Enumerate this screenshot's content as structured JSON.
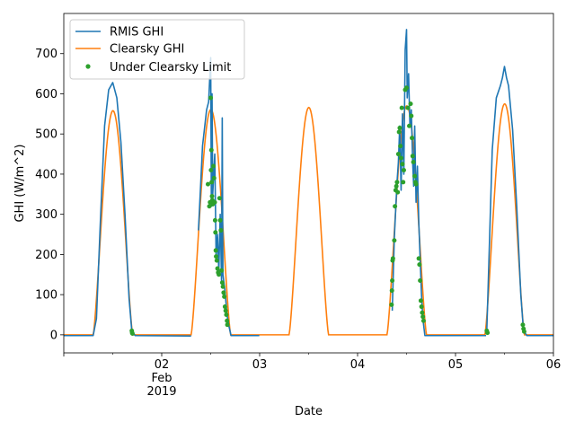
{
  "chart_data": {
    "type": "line",
    "xlabel": "Date",
    "ylabel": "GHI (W/m^2)",
    "xlim": [
      "2019-02-01",
      "2019-02-06"
    ],
    "ylim": [
      -45,
      800
    ],
    "x_ticks": [
      {
        "x": "2019-02-01",
        "label": ""
      },
      {
        "x": "2019-02-02",
        "label": "02",
        "sublabels": [
          "Feb",
          "2019"
        ]
      },
      {
        "x": "2019-02-03",
        "label": "03"
      },
      {
        "x": "2019-02-04",
        "label": "04"
      },
      {
        "x": "2019-02-05",
        "label": "05"
      },
      {
        "x": "2019-02-06",
        "label": "06"
      }
    ],
    "y_ticks": [
      0,
      100,
      200,
      300,
      400,
      500,
      600,
      700
    ],
    "legend": {
      "placement": "upper-left"
    },
    "series": [
      {
        "name": "RMIS GHI",
        "color": "#1f77b4",
        "kind": "line",
        "points": [
          [
            "2019-02-01 00:00",
            -2
          ],
          [
            "2019-02-01 07:12",
            -2
          ],
          [
            "2019-02-01 08:00",
            40
          ],
          [
            "2019-02-01 09:00",
            290
          ],
          [
            "2019-02-01 10:00",
            520
          ],
          [
            "2019-02-01 11:00",
            610
          ],
          [
            "2019-02-01 12:00",
            628
          ],
          [
            "2019-02-01 13:00",
            590
          ],
          [
            "2019-02-01 14:00",
            480
          ],
          [
            "2019-02-01 15:00",
            300
          ],
          [
            "2019-02-01 16:00",
            90
          ],
          [
            "2019-02-01 16:40",
            10
          ],
          [
            "2019-02-01 17:30",
            -2
          ],
          [
            "2019-02-02 07:12",
            -3
          ],
          null,
          [
            "2019-02-02 09:00",
            260
          ],
          [
            "2019-02-02 10:00",
            470
          ],
          [
            "2019-02-02 11:00",
            560
          ],
          [
            "2019-02-02 11:30",
            580
          ],
          [
            "2019-02-02 12:00",
            690
          ],
          [
            "2019-02-02 12:10",
            320
          ],
          [
            "2019-02-02 12:20",
            600
          ],
          [
            "2019-02-02 12:30",
            350
          ],
          [
            "2019-02-02 13:00",
            450
          ],
          [
            "2019-02-02 13:20",
            190
          ],
          [
            "2019-02-02 13:40",
            250
          ],
          [
            "2019-02-02 14:00",
            160
          ],
          [
            "2019-02-02 14:20",
            300
          ],
          [
            "2019-02-02 14:40",
            130
          ],
          [
            "2019-02-02 14:50",
            540
          ],
          [
            "2019-02-02 15:00",
            150
          ],
          [
            "2019-02-02 15:30",
            110
          ],
          [
            "2019-02-02 16:00",
            50
          ],
          [
            "2019-02-02 16:30",
            20
          ],
          [
            "2019-02-02 17:00",
            -2
          ],
          [
            "2019-02-02 23:55",
            -2
          ],
          null,
          [
            "2019-02-04 08:30",
            60
          ],
          [
            "2019-02-04 09:00",
            240
          ],
          [
            "2019-02-04 09:40",
            380
          ],
          [
            "2019-02-04 10:00",
            430
          ],
          [
            "2019-02-04 10:20",
            520
          ],
          [
            "2019-02-04 10:40",
            360
          ],
          [
            "2019-02-04 11:00",
            550
          ],
          [
            "2019-02-04 11:20",
            400
          ],
          [
            "2019-02-04 11:40",
            710
          ],
          [
            "2019-02-04 12:00",
            760
          ],
          [
            "2019-02-04 12:10",
            590
          ],
          [
            "2019-02-04 12:30",
            650
          ],
          [
            "2019-02-04 12:50",
            520
          ],
          [
            "2019-02-04 13:10",
            560
          ],
          [
            "2019-02-04 13:30",
            430
          ],
          [
            "2019-02-04 13:45",
            370
          ],
          [
            "2019-02-04 14:00",
            520
          ],
          [
            "2019-02-04 14:20",
            330
          ],
          [
            "2019-02-04 14:40",
            420
          ],
          [
            "2019-02-04 15:00",
            280
          ],
          [
            "2019-02-04 15:20",
            190
          ],
          [
            "2019-02-04 15:40",
            100
          ],
          [
            "2019-02-04 16:00",
            40
          ],
          [
            "2019-02-04 16:30",
            -2
          ],
          [
            "2019-02-05 07:30",
            -2
          ],
          null,
          [
            "2019-02-05 07:40",
            10
          ],
          [
            "2019-02-05 08:00",
            120
          ],
          [
            "2019-02-05 09:00",
            460
          ],
          [
            "2019-02-05 10:00",
            590
          ],
          [
            "2019-02-05 11:00",
            620
          ],
          [
            "2019-02-05 11:30",
            640
          ],
          [
            "2019-02-05 12:00",
            668
          ],
          [
            "2019-02-05 12:30",
            640
          ],
          [
            "2019-02-05 13:00",
            620
          ],
          [
            "2019-02-05 14:00",
            510
          ],
          [
            "2019-02-05 15:00",
            320
          ],
          [
            "2019-02-05 16:00",
            100
          ],
          [
            "2019-02-05 16:40",
            10
          ],
          [
            "2019-02-05 17:30",
            -2
          ],
          [
            "2019-02-06 00:00",
            -2
          ]
        ]
      },
      {
        "name": "Clearsky GHI",
        "color": "#ff7f0e",
        "kind": "daily-bell",
        "days": [
          {
            "day": "2019-02-01",
            "peak": 558
          },
          {
            "day": "2019-02-02",
            "peak": 561
          },
          {
            "day": "2019-02-03",
            "peak": 566
          },
          {
            "day": "2019-02-04",
            "peak": 570
          },
          {
            "day": "2019-02-05",
            "peak": 575
          }
        ],
        "sunrise_hour": 7.2,
        "sunset_hour": 16.9
      },
      {
        "name": "Under Clearsky Limit",
        "color": "#2ca02c",
        "kind": "scatter",
        "points": [
          [
            "2019-02-01 16:40",
            10
          ],
          [
            "2019-02-01 16:45",
            5
          ],
          [
            "2019-02-01 16:50",
            3
          ],
          [
            "2019-02-02 11:20",
            375
          ],
          [
            "2019-02-02 11:40",
            320
          ],
          [
            "2019-02-02 11:50",
            330
          ],
          [
            "2019-02-02 12:00",
            590
          ],
          [
            "2019-02-02 12:05",
            410
          ],
          [
            "2019-02-02 12:10",
            460
          ],
          [
            "2019-02-02 12:15",
            380
          ],
          [
            "2019-02-02 12:20",
            345
          ],
          [
            "2019-02-02 12:25",
            335
          ],
          [
            "2019-02-02 12:30",
            325
          ],
          [
            "2019-02-02 12:40",
            420
          ],
          [
            "2019-02-02 12:50",
            390
          ],
          [
            "2019-02-02 13:00",
            330
          ],
          [
            "2019-02-02 13:05",
            285
          ],
          [
            "2019-02-02 13:10",
            255
          ],
          [
            "2019-02-02 13:15",
            210
          ],
          [
            "2019-02-02 13:20",
            195
          ],
          [
            "2019-02-02 13:30",
            185
          ],
          [
            "2019-02-02 13:40",
            165
          ],
          [
            "2019-02-02 13:50",
            155
          ],
          [
            "2019-02-02 14:00",
            150
          ],
          [
            "2019-02-02 14:10",
            340
          ],
          [
            "2019-02-02 14:20",
            285
          ],
          [
            "2019-02-02 14:30",
            260
          ],
          [
            "2019-02-02 14:40",
            160
          ],
          [
            "2019-02-02 14:50",
            130
          ],
          [
            "2019-02-02 15:00",
            120
          ],
          [
            "2019-02-02 15:10",
            105
          ],
          [
            "2019-02-02 15:20",
            95
          ],
          [
            "2019-02-02 15:30",
            70
          ],
          [
            "2019-02-02 15:40",
            60
          ],
          [
            "2019-02-02 15:50",
            50
          ],
          [
            "2019-02-02 16:00",
            35
          ],
          [
            "2019-02-02 16:05",
            25
          ],
          [
            "2019-02-04 08:20",
            75
          ],
          [
            "2019-02-04 08:25",
            110
          ],
          [
            "2019-02-04 08:30",
            135
          ],
          [
            "2019-02-04 08:35",
            185
          ],
          [
            "2019-02-04 08:40",
            190
          ],
          [
            "2019-02-04 09:00",
            235
          ],
          [
            "2019-02-04 09:10",
            320
          ],
          [
            "2019-02-04 09:20",
            360
          ],
          [
            "2019-02-04 09:30",
            370
          ],
          [
            "2019-02-04 09:40",
            380
          ],
          [
            "2019-02-04 09:50",
            355
          ],
          [
            "2019-02-04 10:00",
            450
          ],
          [
            "2019-02-04 10:10",
            505
          ],
          [
            "2019-02-04 10:20",
            515
          ],
          [
            "2019-02-04 10:30",
            470
          ],
          [
            "2019-02-04 10:40",
            440
          ],
          [
            "2019-02-04 10:50",
            565
          ],
          [
            "2019-02-04 11:00",
            425
          ],
          [
            "2019-02-04 11:10",
            380
          ],
          [
            "2019-02-04 11:20",
            410
          ],
          [
            "2019-02-04 11:40",
            610
          ],
          [
            "2019-02-04 12:00",
            615
          ],
          [
            "2019-02-04 12:20",
            565
          ],
          [
            "2019-02-04 12:40",
            520
          ],
          [
            "2019-02-04 13:00",
            575
          ],
          [
            "2019-02-04 13:10",
            545
          ],
          [
            "2019-02-04 13:20",
            490
          ],
          [
            "2019-02-04 13:30",
            445
          ],
          [
            "2019-02-04 13:40",
            430
          ],
          [
            "2019-02-04 14:00",
            395
          ],
          [
            "2019-02-04 14:10",
            380
          ],
          [
            "2019-02-04 14:20",
            375
          ],
          [
            "2019-02-04 15:00",
            190
          ],
          [
            "2019-02-04 15:10",
            175
          ],
          [
            "2019-02-04 15:20",
            135
          ],
          [
            "2019-02-04 15:30",
            85
          ],
          [
            "2019-02-04 15:40",
            70
          ],
          [
            "2019-02-04 15:50",
            55
          ],
          [
            "2019-02-04 16:00",
            45
          ],
          [
            "2019-02-04 16:10",
            35
          ],
          [
            "2019-02-05 07:40",
            10
          ],
          [
            "2019-02-05 07:50",
            5
          ],
          [
            "2019-02-05 16:30",
            25
          ],
          [
            "2019-02-05 16:40",
            15
          ],
          [
            "2019-02-05 16:50",
            8
          ]
        ]
      }
    ]
  }
}
